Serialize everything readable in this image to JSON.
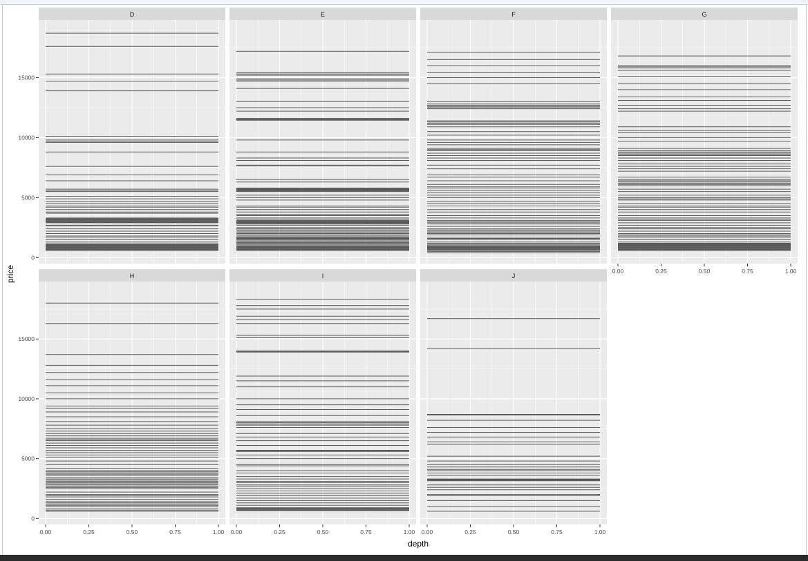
{
  "chart_data": {
    "type": "faceted-line",
    "xlabel": "depth",
    "ylabel": "price",
    "xlim": [
      -0.04,
      1.04
    ],
    "ylim": [
      -500,
      19800
    ],
    "x_ticks": [
      0.0,
      0.25,
      0.5,
      0.75,
      1.0
    ],
    "x_tick_labels": [
      "0.00",
      "0.25",
      "0.50",
      "0.75",
      "1.00"
    ],
    "y_ticks": [
      0,
      5000,
      10000,
      15000
    ],
    "y_tick_labels": [
      "0",
      "5000",
      "10000",
      "15000"
    ],
    "line_color": "#595959",
    "panel_background": "#ebebeb",
    "strip_background": "#d9d9d9",
    "grid_color": "#ffffff",
    "facets": [
      {
        "label": "D",
        "prices": [
          18700,
          17600,
          15300,
          14700,
          13900,
          10100,
          9800,
          9700,
          9600,
          8800,
          7600,
          6900,
          6400,
          5700,
          5600,
          5500,
          5100,
          4900,
          4700,
          4500,
          4300,
          4200,
          4000,
          3800,
          3700,
          3300,
          3250,
          3200,
          3150,
          3100,
          3050,
          3000,
          2950,
          2900,
          2700,
          2650,
          2400,
          2200,
          2000,
          1800,
          1700,
          1500,
          1300,
          1150,
          1100,
          1050,
          1000,
          950,
          900,
          850,
          800,
          750,
          700,
          650,
          600
        ]
      },
      {
        "label": "E",
        "prices": [
          17200,
          15400,
          15300,
          15200,
          14900,
          14800,
          14700,
          14100,
          13000,
          12500,
          12200,
          11600,
          11550,
          11500,
          11450,
          9800,
          8800,
          8300,
          8100,
          7700,
          7650,
          6500,
          6300,
          5800,
          5750,
          5700,
          5650,
          5600,
          5550,
          5500,
          5200,
          5000,
          4800,
          4300,
          4200,
          4000,
          3800,
          3600,
          3500,
          3300,
          3200,
          3100,
          3050,
          3000,
          2950,
          2900,
          2850,
          2800,
          2700,
          2500,
          2400,
          2300,
          2200,
          2100,
          2000,
          1900,
          1800,
          1700,
          1650,
          1600,
          1550,
          1500,
          1400,
          1300,
          1250,
          1200,
          1100,
          1000,
          950,
          900,
          850,
          800,
          750,
          700,
          650,
          600
        ]
      },
      {
        "label": "F",
        "prices": [
          17100,
          16500,
          16000,
          15400,
          15000,
          14500,
          13000,
          12800,
          12700,
          12600,
          12500,
          12400,
          11400,
          11300,
          11200,
          11100,
          10900,
          10500,
          10200,
          9800,
          9600,
          9400,
          9100,
          9000,
          8900,
          8700,
          8500,
          8300,
          8100,
          7700,
          7400,
          6900,
          6700,
          6400,
          6100,
          5900,
          5800,
          5600,
          5400,
          5200,
          5000,
          4700,
          4500,
          4300,
          4000,
          3800,
          3500,
          3300,
          3100,
          3000,
          2900,
          2800,
          2600,
          2400,
          2300,
          2200,
          2100,
          2000,
          1900,
          1700,
          1600,
          1500,
          1300,
          1200,
          1100,
          1000,
          950,
          900,
          850,
          800,
          750,
          700,
          650,
          600,
          500,
          400
        ]
      },
      {
        "label": "G",
        "prices": [
          16800,
          16000,
          15900,
          15800,
          15600,
          15100,
          14500,
          14000,
          13400,
          13100,
          12700,
          12400,
          12200,
          10900,
          10600,
          10400,
          10000,
          9700,
          9100,
          8900,
          8800,
          8700,
          8600,
          8500,
          8300,
          8100,
          7800,
          7600,
          7400,
          7200,
          6700,
          6500,
          6400,
          6300,
          6200,
          6100,
          6000,
          5700,
          5500,
          5200,
          5000,
          4900,
          4800,
          4500,
          4300,
          4200,
          4000,
          3800,
          3500,
          3300,
          3200,
          3100,
          2900,
          2700,
          2500,
          2400,
          2200,
          2000,
          1900,
          1800,
          1700,
          1500,
          1300,
          1200,
          1150,
          1100,
          1050,
          1000,
          950,
          900,
          850,
          800,
          750,
          700,
          650,
          600
        ]
      },
      {
        "label": "H",
        "prices": [
          18000,
          16300,
          13700,
          12800,
          12200,
          11600,
          11100,
          10500,
          10000,
          9400,
          9200,
          8900,
          8500,
          8100,
          7800,
          7500,
          7300,
          7100,
          6900,
          6700,
          6600,
          6500,
          6300,
          6100,
          5900,
          5700,
          5500,
          5300,
          5100,
          4800,
          4500,
          4200,
          4000,
          3900,
          3800,
          3700,
          3600,
          3400,
          3300,
          3200,
          3100,
          3000,
          2900,
          2800,
          2700,
          2600,
          2500,
          2200,
          2000,
          1900,
          1800,
          1600,
          1400,
          1300,
          1200,
          1100,
          1000,
          800,
          700,
          600
        ]
      },
      {
        "label": "I",
        "prices": [
          18300,
          17800,
          17500,
          16900,
          16600,
          16300,
          15300,
          15100,
          14000,
          13950,
          13900,
          11900,
          11500,
          11000,
          10000,
          9500,
          9100,
          8600,
          8100,
          8000,
          7900,
          7800,
          7600,
          7100,
          6800,
          6500,
          6100,
          5700,
          5650,
          5600,
          5300,
          5000,
          4500,
          4400,
          4000,
          3800,
          3500,
          3300,
          3100,
          3000,
          2800,
          2700,
          2500,
          2300,
          2100,
          1900,
          1700,
          1500,
          1300,
          1100,
          900,
          850,
          800,
          750,
          700,
          650
        ]
      },
      {
        "label": "J",
        "prices": [
          16700,
          14200,
          8700,
          8650,
          8200,
          7600,
          7200,
          6800,
          6400,
          6200,
          5200,
          4800,
          4500,
          4300,
          4100,
          4000,
          3800,
          3600,
          3300,
          3250,
          3200,
          3150,
          2800,
          2600,
          2400,
          2000,
          1900,
          1500,
          1000,
          600
        ]
      }
    ]
  }
}
